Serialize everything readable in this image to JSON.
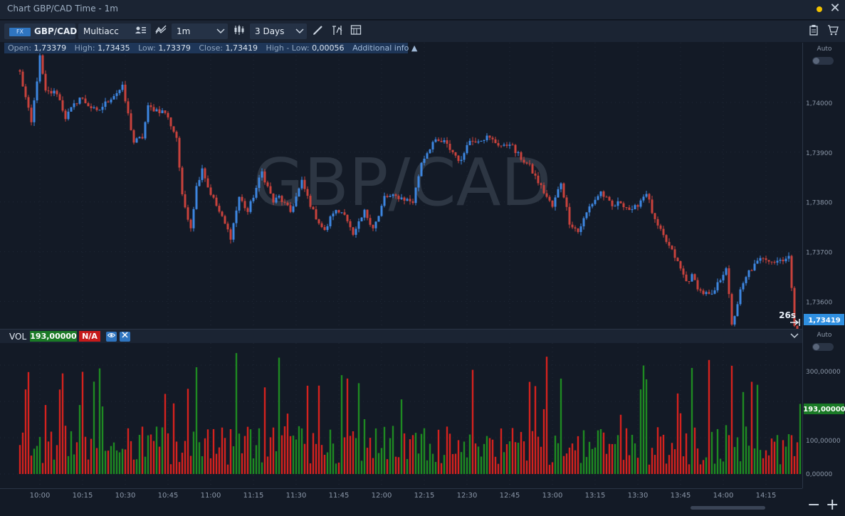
{
  "window": {
    "title": "Chart GBP/CAD Time - 1m",
    "status_color": "#f2c200",
    "close_glyph": "✕"
  },
  "toolbar": {
    "market_badge": "FX",
    "symbol": "GBP/CAD",
    "account": "Multiacc",
    "timeframe": "1m",
    "range": "3 Days",
    "icons": [
      "account-list-icon",
      "chart-type-icon",
      "indicators-icon",
      "draw-icon",
      "studies-icon",
      "templates-icon",
      "clipboard-icon",
      "cart-icon"
    ]
  },
  "ohlc_bar": {
    "open_label": "Open:",
    "open": "1,73379",
    "high_label": "High:",
    "high": "1,73435",
    "low_label": "Low:",
    "low": "1,73379",
    "close_label": "Close:",
    "close": "1,73419",
    "range_label": "High - Low:",
    "range": "0,00056",
    "additional": "Additional info ▲"
  },
  "watermark": "GBP/CAD",
  "price_axis": {
    "auto_label": "Auto",
    "ticks": [
      "1,74000",
      "1,73900",
      "1,73800",
      "1,73700",
      "1,73600"
    ],
    "current_price": "1,73419",
    "countdown": "26s"
  },
  "volume_panel": {
    "label": "VOL",
    "value": "193,00000",
    "na": "N/A",
    "auto_label": "Auto",
    "ticks": [
      "300,00000",
      "100,00000",
      "0,00000"
    ],
    "current_value": "193,00000"
  },
  "time_axis": {
    "ticks": [
      "10:00",
      "10:15",
      "10:30",
      "10:45",
      "11:00",
      "11:15",
      "11:30",
      "11:45",
      "12:00",
      "12:15",
      "12:30",
      "12:45",
      "13:00",
      "13:15",
      "13:30",
      "13:45",
      "14:00",
      "14:15"
    ]
  },
  "colors": {
    "up": "#3d86e0",
    "down": "#c8423c",
    "vol_up": "#1e8a22",
    "vol_down": "#d4221e",
    "background": "#131a26",
    "accent": "#2f75c0"
  },
  "chart_data": {
    "type": "candlestick",
    "symbol": "GBP/CAD",
    "interval": "1m",
    "y_range": [
      1.73545,
      1.7412
    ],
    "volume_range": [
      0,
      345
    ],
    "x_range": [
      "09:53",
      "14:27"
    ],
    "anchors": [
      [
        "09:53",
        1.7406
      ],
      [
        "09:57",
        1.73958
      ],
      [
        "10:00",
        1.7409
      ],
      [
        "10:02",
        1.7402
      ],
      [
        "10:06",
        1.7402
      ],
      [
        "10:09",
        1.7397
      ],
      [
        "10:14",
        1.7401
      ],
      [
        "10:20",
        1.7398
      ],
      [
        "10:25",
        1.7401
      ],
      [
        "10:29",
        1.7403
      ],
      [
        "10:33",
        1.7392
      ],
      [
        "10:36",
        1.7393
      ],
      [
        "10:38",
        1.7399
      ],
      [
        "10:44",
        1.7398
      ],
      [
        "10:48",
        1.7393
      ],
      [
        "10:50",
        1.7381
      ],
      [
        "10:53",
        1.7375
      ],
      [
        "10:55",
        1.7383
      ],
      [
        "10:57",
        1.7387
      ],
      [
        "10:59",
        1.7383
      ],
      [
        "11:03",
        1.7378
      ],
      [
        "11:07",
        1.7373
      ],
      [
        "11:10",
        1.7381
      ],
      [
        "11:13",
        1.7378
      ],
      [
        "11:18",
        1.7386
      ],
      [
        "11:22",
        1.738
      ],
      [
        "11:24",
        1.7381
      ],
      [
        "11:28",
        1.7378
      ],
      [
        "11:32",
        1.7384
      ],
      [
        "11:36",
        1.7378
      ],
      [
        "11:40",
        1.7374
      ],
      [
        "11:43",
        1.7378
      ],
      [
        "11:47",
        1.7378
      ],
      [
        "11:50",
        1.7373
      ],
      [
        "11:54",
        1.7378
      ],
      [
        "11:57",
        1.7375
      ],
      [
        "11:59",
        1.7377
      ],
      [
        "12:01",
        1.7381
      ],
      [
        "12:06",
        1.7381
      ],
      [
        "12:11",
        1.738
      ],
      [
        "12:14",
        1.7388
      ],
      [
        "12:18",
        1.7392
      ],
      [
        "12:22",
        1.7392
      ],
      [
        "12:28",
        1.7388
      ],
      [
        "12:30",
        1.7392
      ],
      [
        "12:37",
        1.7393
      ],
      [
        "12:43",
        1.7391
      ],
      [
        "12:45",
        1.7392
      ],
      [
        "12:47",
        1.739
      ],
      [
        "12:52",
        1.7387
      ],
      [
        "12:57",
        1.7382
      ],
      [
        "13:00",
        1.7379
      ],
      [
        "13:03",
        1.7384
      ],
      [
        "13:06",
        1.7376
      ],
      [
        "13:09",
        1.7374
      ],
      [
        "13:13",
        1.7379
      ],
      [
        "13:17",
        1.7382
      ],
      [
        "13:21",
        1.7379
      ],
      [
        "13:24",
        1.738
      ],
      [
        "13:28",
        1.7378
      ],
      [
        "13:33",
        1.7382
      ],
      [
        "13:36",
        1.7376
      ],
      [
        "13:40",
        1.7372
      ],
      [
        "13:43",
        1.7369
      ],
      [
        "13:47",
        1.7364
      ],
      [
        "13:49",
        1.7365
      ],
      [
        "13:52",
        1.7362
      ],
      [
        "13:56",
        1.7361
      ],
      [
        "14:01",
        1.7367
      ],
      [
        "14:03",
        1.7355
      ],
      [
        "14:06",
        1.7362
      ],
      [
        "14:09",
        1.7366
      ],
      [
        "14:14",
        1.7369
      ],
      [
        "14:18",
        1.7368
      ],
      [
        "14:23",
        1.7369
      ],
      [
        "14:27",
        1.73419
      ]
    ],
    "last": {
      "open": 1.73379,
      "high": 1.73435,
      "low": 1.73379,
      "close": 1.73419,
      "volume": 193
    }
  }
}
